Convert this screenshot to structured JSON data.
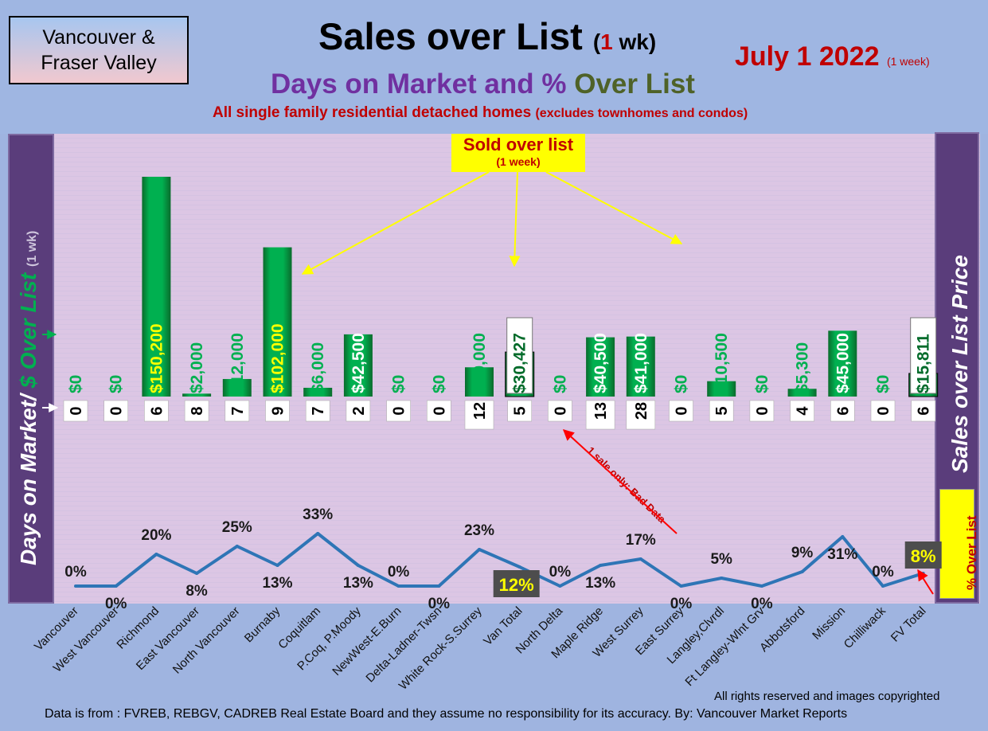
{
  "header": {
    "logo_line1": "Vancouver &",
    "logo_line2": "Fraser Valley",
    "title_main": "Sales over List",
    "title_paren_open": "(",
    "title_number": "1",
    "title_paren_close": " wk)",
    "date": "July 1  2022",
    "date_note": "(1 week)",
    "subtitle_part1": "Days on Market and % ",
    "subtitle_part2": "Over List",
    "note_main": "All single family residential detached homes",
    "note_small": "(excludes townhomes and condos)"
  },
  "axes": {
    "left_label_part1": "Days on Market/ ",
    "left_label_part2": "$ Over List",
    "left_label_small": "(1 wk)",
    "right_label": "Sales over List Price",
    "pct_label": "% Over List"
  },
  "annotations": {
    "sold_over_list": "Sold over list",
    "sold_over_list_sub": "(1 week)",
    "bad_data": "1 sale only: Bad Data"
  },
  "footer": {
    "rights": "All rights reserved and  images copyrighted",
    "source": "Data is from : FVREB, REBGV, CADREB Real Estate Board and they assume no responsibility for its accuracy. By: Vancouver Market Reports"
  },
  "chart_data": {
    "type": "bar",
    "categories": [
      "Vancouver",
      "West Vancouver",
      "Richmond",
      "East Vancouver",
      "North Vancouver",
      "Burnaby",
      "Coquitlam",
      "P.Coq, P.Moody",
      "NewWest-E.Burn",
      "Delta-Ladner-Twsn",
      "White Rock-S.Surrey",
      "Van Total",
      "North Delta",
      "Maple Ridge",
      "West Surrey",
      "East Surrey",
      "Langley,Clvrdl",
      "Ft Langley-Wlnt Grv",
      "Abbotsford",
      "Mission",
      "Chilliwack",
      "FV Total"
    ],
    "series": [
      {
        "name": "Sales over List Price",
        "values": [
          0,
          0,
          150200,
          2000,
          12000,
          102000,
          6000,
          42500,
          0,
          0,
          20000,
          30427,
          0,
          40500,
          41000,
          0,
          10500,
          0,
          5300,
          45000,
          0,
          15811
        ],
        "labels": [
          "$0",
          "$0",
          "$150,200",
          "$2,000",
          "$12,000",
          "$102,000",
          "$6,000",
          "$42,500",
          "$0",
          "$0",
          "$20,000",
          "$30,427",
          "$0",
          "$40,500",
          "$41,000",
          "$0",
          "$10,500",
          "$0",
          "$5,300",
          "$45,000",
          "$0",
          "$15,811"
        ]
      },
      {
        "name": "Days on Market",
        "values": [
          0,
          0,
          6,
          8,
          7,
          9,
          7,
          2,
          0,
          0,
          12,
          5,
          0,
          13,
          28,
          0,
          5,
          0,
          4,
          6,
          0,
          6
        ],
        "labels": [
          "0",
          "0",
          "6",
          "8",
          "7",
          "9",
          "7",
          "2",
          "0",
          "0",
          "12",
          "5",
          "0",
          "13",
          "28",
          "0",
          "5",
          "0",
          "4",
          "6",
          "0",
          "6"
        ]
      },
      {
        "name": "% Over List",
        "values": [
          0,
          0,
          20,
          8,
          25,
          13,
          33,
          13,
          0,
          0,
          23,
          12,
          0,
          13,
          17,
          0,
          5,
          0,
          9,
          31,
          0,
          8
        ],
        "labels": [
          "0%",
          "0%",
          "20%",
          "8%",
          "25%",
          "13%",
          "33%",
          "13%",
          "0%",
          "0%",
          "23%",
          "12%",
          "0%",
          "13%",
          "17%",
          "0%",
          "5%",
          "0%",
          "9%",
          "31%",
          "0%",
          "8%"
        ]
      }
    ],
    "highlighted_totals": [
      "Van Total",
      "FV Total"
    ],
    "colors": {
      "bar": "#00b050",
      "line": "#2e75b6",
      "highlight_bg": "#4d4d4d",
      "highlight_text": "#ffff00",
      "arrow": "#ffff00"
    }
  }
}
